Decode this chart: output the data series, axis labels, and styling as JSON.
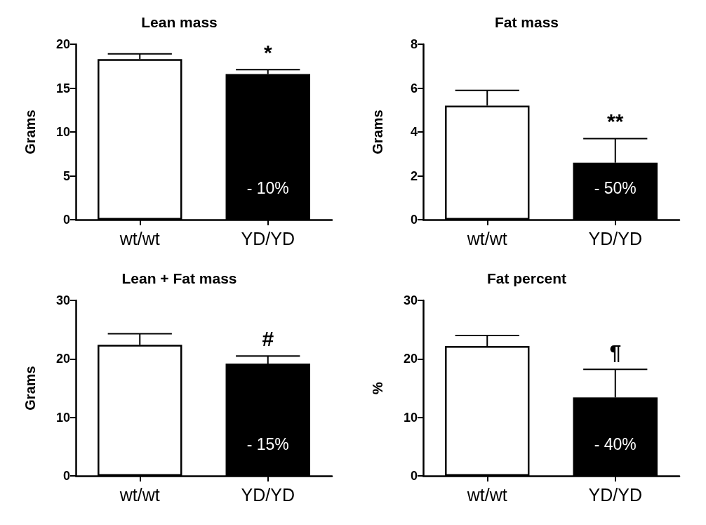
{
  "chart_data": [
    {
      "type": "bar",
      "title": "Lean mass",
      "ylabel": "Grams",
      "categories": [
        "wt/wt",
        "YD/YD"
      ],
      "values": [
        18.3,
        16.6
      ],
      "colors": [
        "#ffffff",
        "#000000"
      ],
      "errors": [
        0.6,
        0.5
      ],
      "ylim": [
        0,
        20
      ],
      "yticks": [
        0,
        5,
        10,
        15,
        20
      ],
      "annotations": [
        "*",
        "- 10%"
      ]
    },
    {
      "type": "bar",
      "title": "Fat mass",
      "ylabel": "Grams",
      "categories": [
        "wt/wt",
        "YD/YD"
      ],
      "values": [
        5.2,
        2.6
      ],
      "colors": [
        "#ffffff",
        "#000000"
      ],
      "errors": [
        0.7,
        1.1
      ],
      "ylim": [
        0,
        8
      ],
      "yticks": [
        0,
        2,
        4,
        6,
        8
      ],
      "annotations": [
        "**",
        "- 50%"
      ]
    },
    {
      "type": "bar",
      "title": "Lean + Fat mass",
      "ylabel": "Grams",
      "categories": [
        "wt/wt",
        "YD/YD"
      ],
      "values": [
        22.4,
        19.2
      ],
      "colors": [
        "#ffffff",
        "#000000"
      ],
      "errors": [
        1.9,
        1.3
      ],
      "ylim": [
        0,
        30
      ],
      "yticks": [
        0,
        10,
        20,
        30
      ],
      "annotations": [
        "#",
        "- 15%"
      ]
    },
    {
      "type": "bar",
      "title": "Fat percent",
      "ylabel": "%",
      "categories": [
        "wt/wt",
        "YD/YD"
      ],
      "values": [
        22.2,
        13.4
      ],
      "colors": [
        "#ffffff",
        "#000000"
      ],
      "errors": [
        1.8,
        4.8
      ],
      "ylim": [
        0,
        30
      ],
      "yticks": [
        0,
        10,
        20,
        30
      ],
      "annotations": [
        "¶",
        "- 40%"
      ]
    }
  ]
}
